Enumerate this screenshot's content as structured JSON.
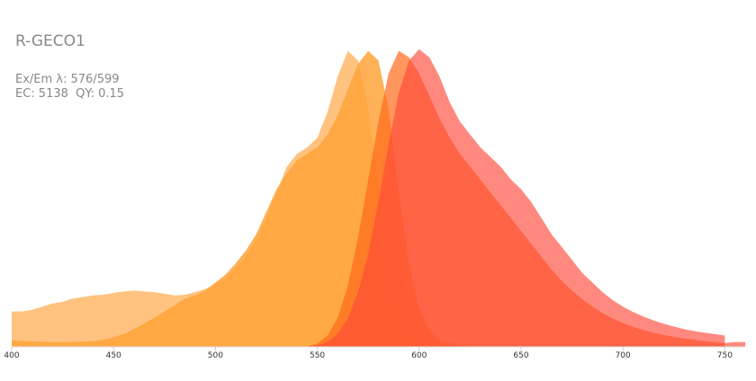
{
  "chart_data": {
    "type": "area",
    "title": "R-GECO1",
    "info": {
      "line1": "Ex/Em λ: 576/599",
      "line2": "EC: 5138  QY: 0.15"
    },
    "xlim": [
      400,
      760
    ],
    "ylim": [
      0,
      1
    ],
    "x_ticks": [
      "400",
      "450",
      "500",
      "550",
      "600",
      "650",
      "700",
      "750"
    ],
    "grid": false,
    "series": [
      {
        "role": "excitation-1",
        "color": "#ffa33a",
        "opacity": 0.65,
        "points": [
          [
            400,
            0.11
          ],
          [
            405,
            0.11
          ],
          [
            410,
            0.115
          ],
          [
            415,
            0.125
          ],
          [
            420,
            0.135
          ],
          [
            425,
            0.14
          ],
          [
            430,
            0.15
          ],
          [
            435,
            0.155
          ],
          [
            440,
            0.16
          ],
          [
            445,
            0.162
          ],
          [
            450,
            0.168
          ],
          [
            455,
            0.172
          ],
          [
            460,
            0.175
          ],
          [
            465,
            0.172
          ],
          [
            470,
            0.17
          ],
          [
            475,
            0.165
          ],
          [
            480,
            0.16
          ],
          [
            485,
            0.162
          ],
          [
            490,
            0.17
          ],
          [
            495,
            0.18
          ],
          [
            500,
            0.195
          ],
          [
            505,
            0.215
          ],
          [
            510,
            0.245
          ],
          [
            515,
            0.28
          ],
          [
            520,
            0.33
          ],
          [
            525,
            0.4
          ],
          [
            530,
            0.48
          ],
          [
            535,
            0.56
          ],
          [
            540,
            0.6
          ],
          [
            545,
            0.62
          ],
          [
            550,
            0.65
          ],
          [
            555,
            0.73
          ],
          [
            560,
            0.84
          ],
          [
            565,
            0.92
          ],
          [
            570,
            0.89
          ],
          [
            575,
            0.74
          ],
          [
            580,
            0.5
          ],
          [
            585,
            0.28
          ],
          [
            590,
            0.14
          ],
          [
            595,
            0.06
          ],
          [
            600,
            0.025
          ],
          [
            605,
            0.01
          ],
          [
            610,
            0.004
          ],
          [
            620,
            0.0
          ]
        ]
      },
      {
        "role": "excitation-2",
        "color": "#ffa33a",
        "opacity": 0.85,
        "points": [
          [
            400,
            0.02
          ],
          [
            410,
            0.017
          ],
          [
            420,
            0.015
          ],
          [
            430,
            0.015
          ],
          [
            440,
            0.018
          ],
          [
            445,
            0.022
          ],
          [
            450,
            0.03
          ],
          [
            455,
            0.04
          ],
          [
            460,
            0.055
          ],
          [
            465,
            0.072
          ],
          [
            470,
            0.09
          ],
          [
            475,
            0.11
          ],
          [
            480,
            0.13
          ],
          [
            485,
            0.15
          ],
          [
            490,
            0.16
          ],
          [
            495,
            0.175
          ],
          [
            500,
            0.2
          ],
          [
            505,
            0.225
          ],
          [
            510,
            0.26
          ],
          [
            515,
            0.3
          ],
          [
            520,
            0.35
          ],
          [
            525,
            0.42
          ],
          [
            530,
            0.49
          ],
          [
            535,
            0.54
          ],
          [
            540,
            0.58
          ],
          [
            545,
            0.6
          ],
          [
            550,
            0.62
          ],
          [
            555,
            0.66
          ],
          [
            560,
            0.72
          ],
          [
            565,
            0.8
          ],
          [
            570,
            0.88
          ],
          [
            575,
            0.92
          ],
          [
            580,
            0.89
          ],
          [
            585,
            0.74
          ],
          [
            590,
            0.48
          ],
          [
            595,
            0.26
          ],
          [
            600,
            0.12
          ],
          [
            605,
            0.05
          ],
          [
            610,
            0.02
          ],
          [
            620,
            0.006
          ],
          [
            630,
            0.0
          ]
        ]
      },
      {
        "role": "emission-1",
        "color": "#ff6a1a",
        "opacity": 0.7,
        "points": [
          [
            544,
            0.0
          ],
          [
            550,
            0.01
          ],
          [
            555,
            0.035
          ],
          [
            560,
            0.09
          ],
          [
            565,
            0.19
          ],
          [
            570,
            0.34
          ],
          [
            575,
            0.52
          ],
          [
            580,
            0.7
          ],
          [
            585,
            0.85
          ],
          [
            590,
            0.92
          ],
          [
            595,
            0.9
          ],
          [
            600,
            0.85
          ],
          [
            605,
            0.78
          ],
          [
            610,
            0.71
          ],
          [
            615,
            0.65
          ],
          [
            620,
            0.6
          ],
          [
            625,
            0.56
          ],
          [
            630,
            0.52
          ],
          [
            635,
            0.48
          ],
          [
            640,
            0.44
          ],
          [
            645,
            0.4
          ],
          [
            650,
            0.36
          ],
          [
            655,
            0.32
          ],
          [
            660,
            0.28
          ],
          [
            665,
            0.24
          ],
          [
            670,
            0.205
          ],
          [
            675,
            0.175
          ],
          [
            680,
            0.148
          ],
          [
            685,
            0.125
          ],
          [
            690,
            0.105
          ],
          [
            695,
            0.088
          ],
          [
            700,
            0.074
          ],
          [
            705,
            0.062
          ],
          [
            710,
            0.052
          ],
          [
            715,
            0.044
          ],
          [
            720,
            0.037
          ],
          [
            725,
            0.031
          ],
          [
            730,
            0.026
          ],
          [
            735,
            0.022
          ],
          [
            740,
            0.018
          ],
          [
            745,
            0.015
          ],
          [
            750,
            0.012
          ],
          [
            750,
            0.0
          ]
        ]
      },
      {
        "role": "emission-2",
        "color": "#ff4a3a",
        "opacity": 0.65,
        "points": [
          [
            544,
            0.0
          ],
          [
            550,
            0.005
          ],
          [
            555,
            0.015
          ],
          [
            560,
            0.04
          ],
          [
            565,
            0.09
          ],
          [
            570,
            0.17
          ],
          [
            575,
            0.29
          ],
          [
            580,
            0.45
          ],
          [
            585,
            0.63
          ],
          [
            590,
            0.79
          ],
          [
            595,
            0.89
          ],
          [
            600,
            0.925
          ],
          [
            605,
            0.9
          ],
          [
            610,
            0.84
          ],
          [
            615,
            0.76
          ],
          [
            620,
            0.7
          ],
          [
            625,
            0.66
          ],
          [
            630,
            0.62
          ],
          [
            635,
            0.59
          ],
          [
            640,
            0.56
          ],
          [
            645,
            0.52
          ],
          [
            650,
            0.49
          ],
          [
            655,
            0.45
          ],
          [
            660,
            0.4
          ],
          [
            665,
            0.35
          ],
          [
            670,
            0.31
          ],
          [
            675,
            0.27
          ],
          [
            680,
            0.23
          ],
          [
            685,
            0.2
          ],
          [
            690,
            0.17
          ],
          [
            695,
            0.145
          ],
          [
            700,
            0.125
          ],
          [
            705,
            0.108
          ],
          [
            710,
            0.094
          ],
          [
            715,
            0.082
          ],
          [
            720,
            0.072
          ],
          [
            725,
            0.063
          ],
          [
            730,
            0.055
          ],
          [
            735,
            0.049
          ],
          [
            740,
            0.044
          ],
          [
            745,
            0.04
          ],
          [
            750,
            0.035
          ],
          [
            750,
            0.012
          ],
          [
            755,
            0.015
          ],
          [
            760,
            0.015
          ],
          [
            760,
            0.0
          ]
        ]
      }
    ]
  }
}
